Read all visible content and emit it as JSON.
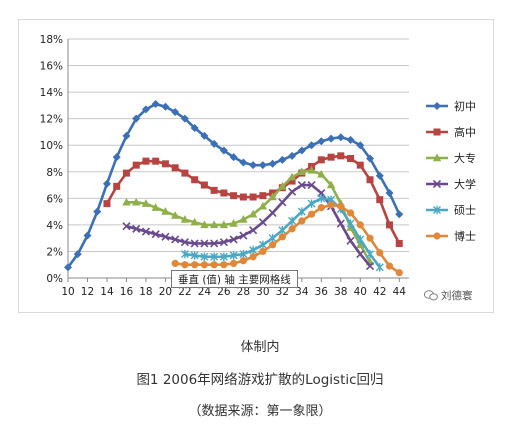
{
  "chart_data": {
    "type": "line",
    "title": "",
    "xlabel": "",
    "ylabel": "",
    "xlim": [
      10,
      44
    ],
    "ylim": [
      0,
      18
    ],
    "x_ticks": [
      10,
      12,
      14,
      16,
      18,
      20,
      22,
      24,
      26,
      28,
      30,
      32,
      34,
      36,
      38,
      40,
      42,
      44
    ],
    "y_ticks": [
      0,
      2,
      4,
      6,
      8,
      10,
      12,
      14,
      16,
      18
    ],
    "y_tick_labels": [
      "0%",
      "2%",
      "4%",
      "6%",
      "8%",
      "10%",
      "12%",
      "14%",
      "16%",
      "18%"
    ],
    "grid": true,
    "legend_position": "right",
    "series": [
      {
        "name": "初中",
        "color": "#3b6fb6",
        "marker": "diamond",
        "x_start": 10,
        "values": [
          0.8,
          1.8,
          3.2,
          5.0,
          7.1,
          9.1,
          10.7,
          12.0,
          12.7,
          13.1,
          12.9,
          12.5,
          12.0,
          11.3,
          10.7,
          10.1,
          9.6,
          9.1,
          8.7,
          8.5,
          8.5,
          8.6,
          8.9,
          9.2,
          9.6,
          10.0,
          10.3,
          10.5,
          10.6,
          10.4,
          10.0,
          9.0,
          7.7,
          6.4,
          4.8
        ]
      },
      {
        "name": "高中",
        "color": "#b84442",
        "marker": "square",
        "x_start": 14,
        "values": [
          5.6,
          6.9,
          7.9,
          8.5,
          8.8,
          8.8,
          8.6,
          8.3,
          7.9,
          7.4,
          7.0,
          6.6,
          6.4,
          6.2,
          6.1,
          6.1,
          6.2,
          6.4,
          6.8,
          7.3,
          7.9,
          8.4,
          8.9,
          9.1,
          9.2,
          9.0,
          8.5,
          7.4,
          5.9,
          4.0,
          2.6
        ]
      },
      {
        "name": "大专",
        "color": "#8faf4b",
        "marker": "triangle",
        "x_start": 16,
        "values": [
          5.7,
          5.7,
          5.6,
          5.3,
          5.0,
          4.7,
          4.4,
          4.2,
          4.0,
          4.0,
          4.0,
          4.1,
          4.4,
          4.8,
          5.4,
          6.1,
          6.9,
          7.6,
          8.0,
          8.1,
          7.8,
          7.0,
          5.6,
          3.8,
          2.5,
          1.2
        ]
      },
      {
        "name": "大学",
        "color": "#6a4a8e",
        "marker": "x",
        "x_start": 16,
        "values": [
          3.9,
          3.7,
          3.5,
          3.3,
          3.1,
          2.9,
          2.7,
          2.6,
          2.6,
          2.6,
          2.7,
          2.9,
          3.2,
          3.6,
          4.2,
          4.9,
          5.7,
          6.5,
          7.0,
          7.0,
          6.4,
          5.4,
          4.1,
          2.8,
          1.8,
          0.9
        ]
      },
      {
        "name": "硕士",
        "color": "#4aa8c4",
        "marker": "asterisk",
        "x_start": 22,
        "values": [
          1.8,
          1.7,
          1.6,
          1.6,
          1.6,
          1.7,
          1.8,
          2.1,
          2.5,
          3.0,
          3.6,
          4.3,
          5.0,
          5.6,
          6.0,
          5.9,
          5.2,
          4.1,
          2.9,
          1.8,
          0.8
        ]
      },
      {
        "name": "博士",
        "color": "#e0883a",
        "marker": "circle",
        "x_start": 21,
        "values": [
          1.1,
          1.0,
          1.0,
          1.0,
          1.0,
          1.0,
          1.1,
          1.3,
          1.6,
          2.0,
          2.5,
          3.1,
          3.7,
          4.3,
          4.8,
          5.3,
          5.5,
          5.4,
          4.9,
          4.0,
          3.0,
          1.9,
          0.9,
          0.4
        ]
      }
    ]
  },
  "tooltip": {
    "text": "垂直 (值) 轴 主要网格线"
  },
  "watermark": {
    "text": "刘德寰",
    "icon": "wechat-icon"
  },
  "caption": {
    "label": "体制内",
    "figure_title": "图1  2006年网络游戏扩散的Logistic回归",
    "source": "（数据来源：第一象限）"
  }
}
